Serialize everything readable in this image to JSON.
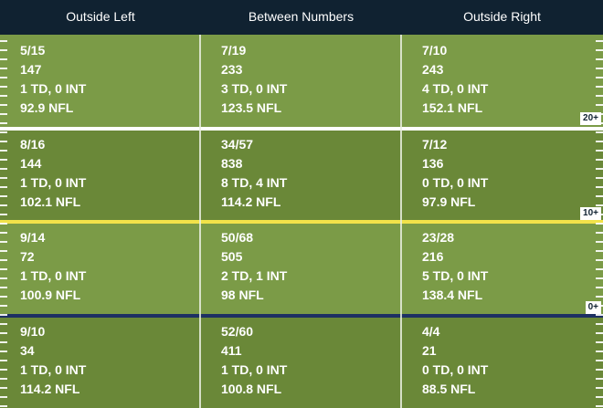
{
  "header": {
    "columns": [
      "Outside Left",
      "Between Numbers",
      "Outside Right"
    ]
  },
  "zones": [
    {
      "label": "20+",
      "cells": [
        {
          "comp_att": "5/15",
          "yards": "147",
          "td_int": "1 TD, 0 INT",
          "rating": "92.9 NFL"
        },
        {
          "comp_att": "7/19",
          "yards": "233",
          "td_int": "3 TD, 0 INT",
          "rating": "123.5 NFL"
        },
        {
          "comp_att": "7/10",
          "yards": "243",
          "td_int": "4 TD, 0 INT",
          "rating": "152.1 NFL"
        }
      ]
    },
    {
      "label": "10+",
      "cells": [
        {
          "comp_att": "8/16",
          "yards": "144",
          "td_int": "1 TD, 0 INT",
          "rating": "102.1 NFL"
        },
        {
          "comp_att": "34/57",
          "yards": "838",
          "td_int": "8 TD, 4 INT",
          "rating": "114.2 NFL"
        },
        {
          "comp_att": "7/12",
          "yards": "136",
          "td_int": "0 TD, 0 INT",
          "rating": "97.9 NFL"
        }
      ]
    },
    {
      "label": "0+",
      "cells": [
        {
          "comp_att": "9/14",
          "yards": "72",
          "td_int": "1 TD, 0 INT",
          "rating": "100.9 NFL"
        },
        {
          "comp_att": "50/68",
          "yards": "505",
          "td_int": "2 TD, 1 INT",
          "rating": "98 NFL"
        },
        {
          "comp_att": "23/28",
          "yards": "216",
          "td_int": "5 TD, 0 INT",
          "rating": "138.4 NFL"
        }
      ]
    },
    {
      "label": "",
      "cells": [
        {
          "comp_att": "9/10",
          "yards": "34",
          "td_int": "1 TD, 0 INT",
          "rating": "114.2 NFL"
        },
        {
          "comp_att": "52/60",
          "yards": "411",
          "td_int": "1 TD, 0 INT",
          "rating": "100.8 NFL"
        },
        {
          "comp_att": "4/4",
          "yards": "21",
          "td_int": "0 TD, 0 INT",
          "rating": "88.5 NFL"
        }
      ]
    }
  ],
  "colors": {
    "header_bg": "#102231",
    "field_light": "#7b9b47",
    "field_dark": "#6a8838",
    "line_20": "#ffffff",
    "line_10": "#f2e24a",
    "line_0": "#1d3063"
  }
}
